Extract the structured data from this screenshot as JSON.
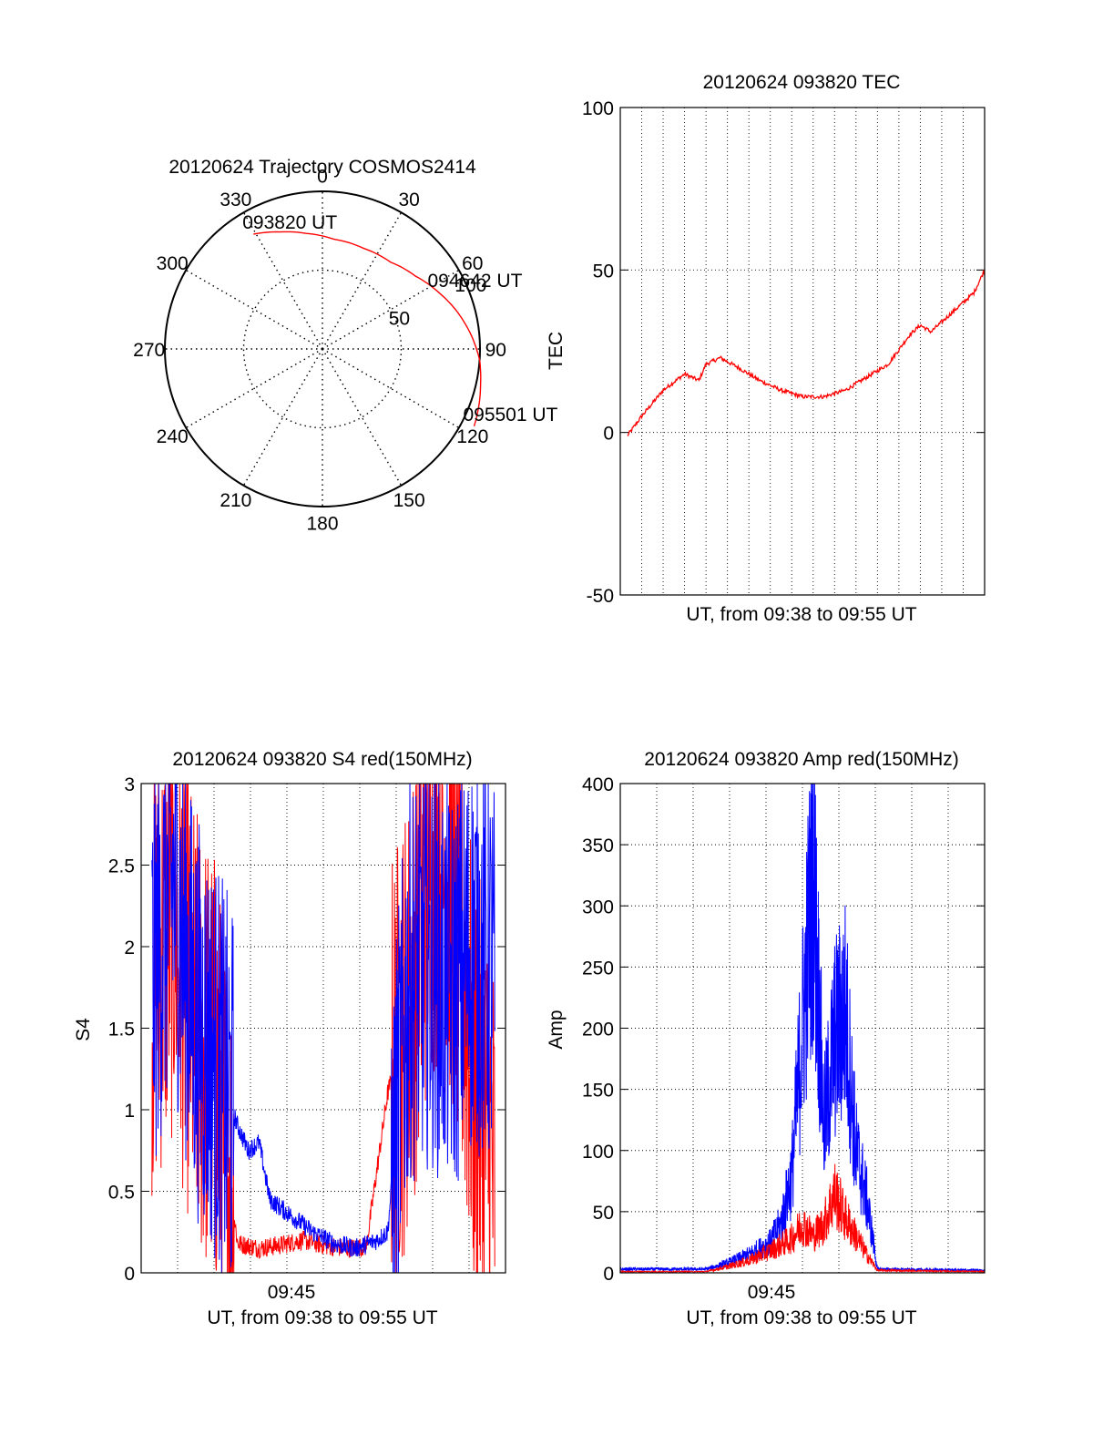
{
  "chart_data": [
    {
      "type": "polar",
      "title": "20120624 Trajectory COSMOS2414",
      "azimuth_labels": [
        "0",
        "30",
        "60",
        "90",
        "120",
        "150",
        "180",
        "210",
        "240",
        "270",
        "300",
        "330"
      ],
      "radial_labels": [
        "50",
        "100"
      ],
      "radial_ticks": [
        50,
        100
      ],
      "radial_range": [
        0,
        100
      ],
      "grid": true,
      "series": [
        {
          "color": "#ff0000",
          "points": [
            {
              "az": 329,
              "r": 85
            },
            {
              "az": 340,
              "r": 79
            },
            {
              "az": 352,
              "r": 74
            },
            {
              "az": 6,
              "r": 70
            },
            {
              "az": 22,
              "r": 69
            },
            {
              "az": 38,
              "r": 70
            },
            {
              "az": 52,
              "r": 75
            },
            {
              "az": 64,
              "r": 82
            },
            {
              "az": 75,
              "r": 89
            },
            {
              "az": 85,
              "r": 95
            },
            {
              "az": 94,
              "r": 100
            },
            {
              "az": 103,
              "r": 103
            },
            {
              "az": 111,
              "r": 106
            },
            {
              "az": 117,
              "r": 108
            }
          ]
        }
      ],
      "annotations": [
        {
          "text": "093820 UT",
          "az": 329,
          "r": 85
        },
        {
          "text": "094642 UT",
          "az": 64,
          "r": 82
        },
        {
          "text": "095501 UT",
          "az": 117,
          "r": 108
        }
      ]
    },
    {
      "type": "line",
      "title": "20120624 093820 TEC",
      "xlabel": "UT, from 09:38 to 09:55 UT",
      "ylabel": "TEC",
      "x_unit": "minutes",
      "xlim": [
        "09:38",
        "09:55"
      ],
      "ylim": [
        -50,
        100
      ],
      "yticks": [
        -50,
        0,
        50,
        100
      ],
      "ytick_labels": [
        "-50",
        "0",
        "50",
        "100"
      ],
      "grid": true,
      "series": [
        {
          "color": "#ff0000",
          "x": [
            "09:38:20",
            "09:39:00",
            "09:40:00",
            "09:41:00",
            "09:41:40",
            "09:42:00",
            "09:42:40",
            "09:43:30",
            "09:44:30",
            "09:45:30",
            "09:46:30",
            "09:47:30",
            "09:48:30",
            "09:49:30",
            "09:50:30",
            "09:51:30",
            "09:52:00",
            "09:52:30",
            "09:53:00",
            "09:53:30",
            "09:54:00",
            "09:54:30",
            "09:55:00"
          ],
          "values": [
            -1,
            5,
            13,
            18,
            16,
            21,
            23,
            20,
            16,
            13,
            11,
            11,
            13,
            17,
            21,
            30,
            33,
            31,
            34,
            37,
            40,
            43,
            50
          ]
        }
      ]
    },
    {
      "type": "line",
      "title": "20120624 093820 S4 red(150MHz)",
      "xlabel": "UT, from 09:38 to 09:55 UT",
      "ylabel": "S4",
      "xtick_labels": [
        "09:45"
      ],
      "xlim": [
        "09:38",
        "09:55"
      ],
      "ylim": [
        0,
        3
      ],
      "yticks": [
        0,
        0.5,
        1,
        1.5,
        2,
        2.5,
        3
      ],
      "ytick_labels": [
        "0",
        "0.5",
        "1",
        "1.5",
        "2",
        "2.5",
        "3"
      ],
      "grid": true,
      "series": [
        {
          "color": "#ff0000",
          "x": [
            "09:38:30",
            "09:39:30",
            "09:40:30",
            "09:41:30",
            "09:42:30",
            "09:43:30",
            "09:44:30",
            "09:45:30",
            "09:46:30",
            "09:47:30",
            "09:48:30",
            "09:49:30",
            "09:50:30",
            "09:51:30",
            "09:52:30",
            "09:53:30",
            "09:54:30"
          ],
          "values": [
            1.8,
            2.2,
            1.5,
            1.2,
            0.18,
            0.15,
            0.17,
            0.2,
            0.17,
            0.15,
            0.16,
            1.1,
            1.6,
            2.6,
            2.4,
            1.2,
            0.6
          ]
        },
        {
          "color": "#0000ff",
          "x": [
            "09:38:30",
            "09:39:30",
            "09:40:30",
            "09:41:30",
            "09:42:30",
            "09:43:00",
            "09:43:30",
            "09:44:00",
            "09:45:00",
            "09:46:00",
            "09:47:00",
            "09:48:00",
            "09:49:00",
            "09:49:30",
            "09:50:30",
            "09:51:30",
            "09:52:30",
            "09:53:30",
            "09:54:30"
          ],
          "values": [
            1.8,
            2.4,
            1.6,
            1.3,
            0.9,
            0.75,
            0.8,
            0.45,
            0.35,
            0.25,
            0.18,
            0.15,
            0.2,
            0.25,
            1.8,
            1.9,
            1.7,
            2.0,
            1.8
          ]
        }
      ]
    },
    {
      "type": "line",
      "title": "20120624 093820 Amp red(150MHz)",
      "ylabel": "Amp",
      "xlabel": "UT, from 09:38 to 09:55 UT",
      "xtick_labels": [
        "09:45"
      ],
      "xlim": [
        "09:38",
        "09:55"
      ],
      "ylim": [
        0,
        400
      ],
      "yticks": [
        0,
        50,
        100,
        150,
        200,
        250,
        300,
        350,
        400
      ],
      "ytick_labels": [
        "0",
        "50",
        "100",
        "150",
        "200",
        "250",
        "300",
        "350",
        "400"
      ],
      "grid": true,
      "series": [
        {
          "color": "#ff0000",
          "x": [
            "09:38:00",
            "09:42:00",
            "09:43:00",
            "09:44:00",
            "09:45:00",
            "09:46:00",
            "09:46:30",
            "09:47:00",
            "09:47:30",
            "09:48:00",
            "09:48:30",
            "09:49:00",
            "09:49:30",
            "09:50:00",
            "09:55:00"
          ],
          "values": [
            1,
            1,
            5,
            10,
            18,
            28,
            40,
            30,
            40,
            65,
            45,
            30,
            15,
            2,
            1
          ]
        },
        {
          "color": "#0000ff",
          "x": [
            "09:38:00",
            "09:42:00",
            "09:43:00",
            "09:44:00",
            "09:45:00",
            "09:45:30",
            "09:46:00",
            "09:46:30",
            "09:47:00",
            "09:47:30",
            "09:48:00",
            "09:48:30",
            "09:49:00",
            "09:49:30",
            "09:50:00",
            "09:55:00"
          ],
          "values": [
            3,
            3,
            8,
            15,
            25,
            40,
            80,
            200,
            330,
            120,
            190,
            215,
            100,
            60,
            3,
            2
          ]
        }
      ]
    }
  ]
}
